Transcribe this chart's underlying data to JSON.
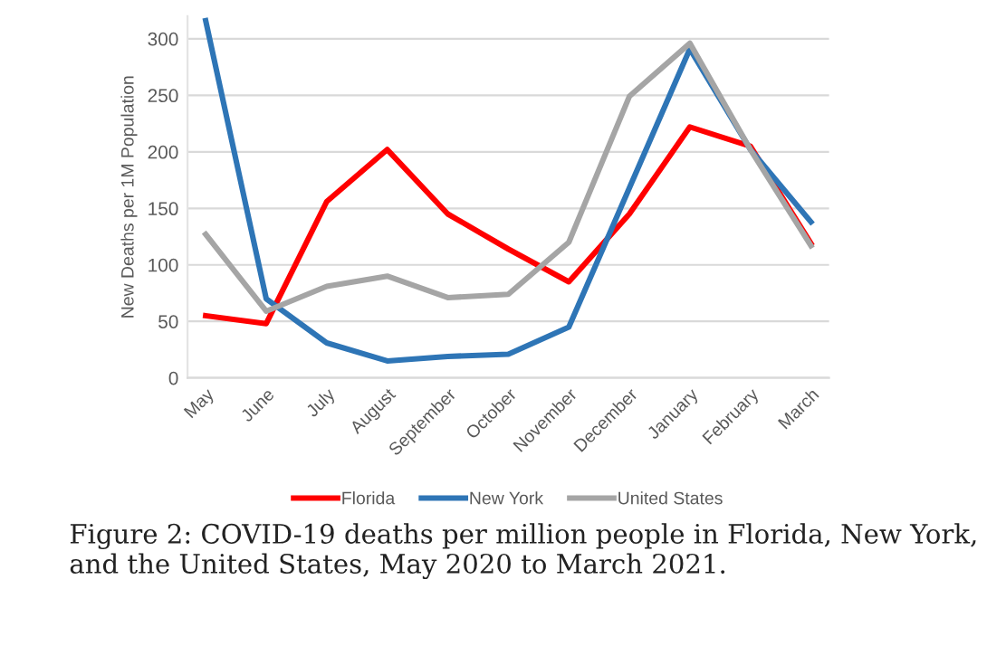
{
  "chart_data": {
    "type": "line",
    "ylabel": "New Deaths per 1M Population",
    "categories": [
      "May",
      "June",
      "July",
      "August",
      "September",
      "October",
      "November",
      "December",
      "January",
      "February",
      "March"
    ],
    "series": [
      {
        "name": "Florida",
        "color": "#ff0000",
        "values": [
          55,
          48,
          156,
          202,
          145,
          114,
          85,
          145,
          222,
          205,
          119
        ]
      },
      {
        "name": "New York",
        "color": "#2e75b6",
        "values": [
          316,
          70,
          31,
          15,
          19,
          21,
          45,
          168,
          291,
          202,
          138
        ]
      },
      {
        "name": "United States",
        "color": "#a5a5a5",
        "values": [
          127,
          59,
          81,
          90,
          71,
          74,
          120,
          249,
          296,
          202,
          117
        ]
      }
    ],
    "ylim": [
      0,
      320
    ],
    "yticks": [
      0,
      50,
      100,
      150,
      200,
      250,
      300
    ],
    "grid": "y",
    "legend": "bottom",
    "annotations": [
      "Figure 2: COVID-19 deaths per million people in Florida, New York, and the United States, May 2020 to March 2021."
    ]
  }
}
